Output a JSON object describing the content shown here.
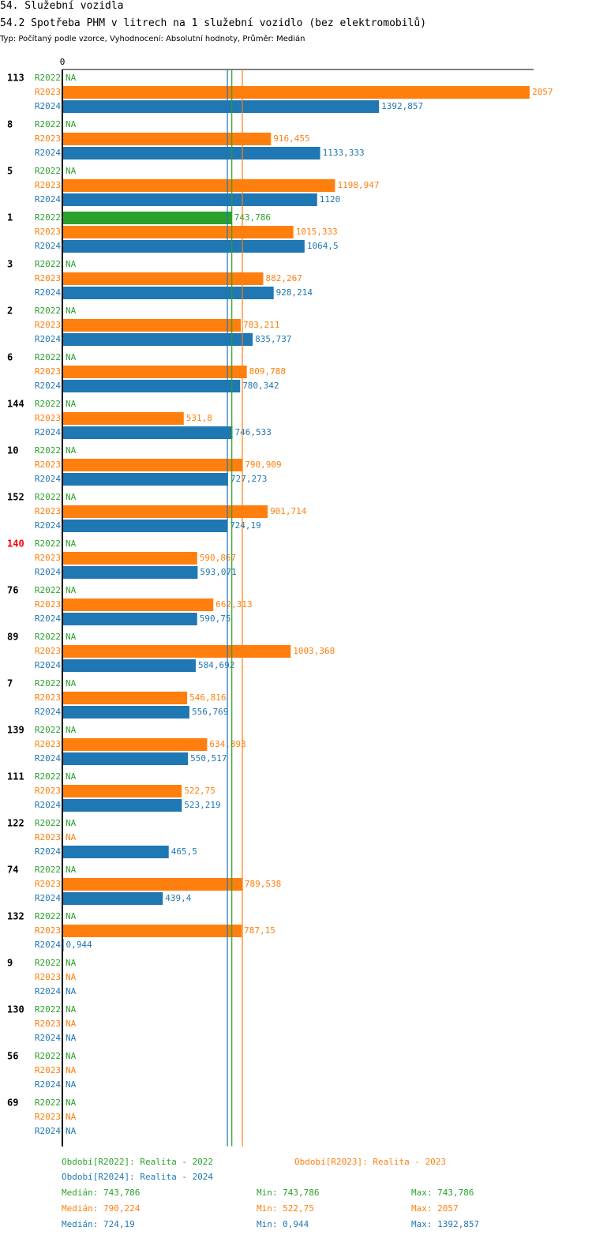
{
  "header": {
    "section": "54. Služební vozidla",
    "title": "54.2 Spotřeba PHM v litrech na 1 služební vozidlo (bez elektromobilů)",
    "subtitle": "Typ: Počítaný podle vzorce, Vyhodnocení: Absolutní hodnoty, Průměr: Medián"
  },
  "colors": {
    "R2022": "#2ca02c",
    "R2023": "#ff7f0e",
    "R2024": "#1f77b4",
    "highlight": "#ff0000"
  },
  "chart_data": {
    "type": "bar",
    "orientation": "horizontal",
    "axis_zero_label": "0",
    "xlim": [
      0,
      2100
    ],
    "na_label": "NA",
    "series_names": [
      "R2022",
      "R2023",
      "R2024"
    ],
    "categories": [
      {
        "label": "113",
        "highlight": false,
        "values": [
          null,
          2057,
          1392.857
        ],
        "labels": [
          "NA",
          "2057",
          "1392,857"
        ]
      },
      {
        "label": "8",
        "highlight": false,
        "values": [
          null,
          916.455,
          1133.333
        ],
        "labels": [
          "NA",
          "916,455",
          "1133,333"
        ]
      },
      {
        "label": "5",
        "highlight": false,
        "values": [
          null,
          1198.947,
          1120
        ],
        "labels": [
          "NA",
          "1198,947",
          "1120"
        ]
      },
      {
        "label": "1",
        "highlight": false,
        "values": [
          743.786,
          1015.333,
          1064.5
        ],
        "labels": [
          "743,786",
          "1015,333",
          "1064,5"
        ]
      },
      {
        "label": "3",
        "highlight": false,
        "values": [
          null,
          882.267,
          928.214
        ],
        "labels": [
          "NA",
          "882,267",
          "928,214"
        ]
      },
      {
        "label": "2",
        "highlight": false,
        "values": [
          null,
          783.211,
          835.737
        ],
        "labels": [
          "NA",
          "783,211",
          "835,737"
        ]
      },
      {
        "label": "6",
        "highlight": false,
        "values": [
          null,
          809.788,
          780.342
        ],
        "labels": [
          "NA",
          "809,788",
          "780,342"
        ]
      },
      {
        "label": "144",
        "highlight": false,
        "values": [
          null,
          531.8,
          746.533
        ],
        "labels": [
          "NA",
          "531,8",
          "746,533"
        ]
      },
      {
        "label": "10",
        "highlight": false,
        "values": [
          null,
          790.909,
          727.273
        ],
        "labels": [
          "NA",
          "790,909",
          "727,273"
        ]
      },
      {
        "label": "152",
        "highlight": false,
        "values": [
          null,
          901.714,
          724.19
        ],
        "labels": [
          "NA",
          "901,714",
          "724,19"
        ]
      },
      {
        "label": "140",
        "highlight": true,
        "values": [
          null,
          590.867,
          593.071
        ],
        "labels": [
          "NA",
          "590,867",
          "593,071"
        ]
      },
      {
        "label": "76",
        "highlight": false,
        "values": [
          null,
          662.313,
          590.75
        ],
        "labels": [
          "NA",
          "662,313",
          "590,75"
        ]
      },
      {
        "label": "89",
        "highlight": false,
        "values": [
          null,
          1003.368,
          584.692
        ],
        "labels": [
          "NA",
          "1003,368",
          "584,692"
        ]
      },
      {
        "label": "7",
        "highlight": false,
        "values": [
          null,
          546.816,
          556.769
        ],
        "labels": [
          "NA",
          "546,816",
          "556,769"
        ]
      },
      {
        "label": "139",
        "highlight": false,
        "values": [
          null,
          634.893,
          550.517
        ],
        "labels": [
          "NA",
          "634,893",
          "550,517"
        ]
      },
      {
        "label": "111",
        "highlight": false,
        "values": [
          null,
          522.75,
          523.219
        ],
        "labels": [
          "NA",
          "522,75",
          "523,219"
        ]
      },
      {
        "label": "122",
        "highlight": false,
        "values": [
          null,
          null,
          465.5
        ],
        "labels": [
          "NA",
          "NA",
          "465,5"
        ]
      },
      {
        "label": "74",
        "highlight": false,
        "values": [
          null,
          789.538,
          439.4
        ],
        "labels": [
          "NA",
          "789,538",
          "439,4"
        ]
      },
      {
        "label": "132",
        "highlight": false,
        "values": [
          null,
          787.15,
          0.944
        ],
        "labels": [
          "NA",
          "787,15",
          "0,944"
        ]
      },
      {
        "label": "9",
        "highlight": false,
        "values": [
          null,
          null,
          null
        ],
        "labels": [
          "NA",
          "NA",
          "NA"
        ]
      },
      {
        "label": "130",
        "highlight": false,
        "values": [
          null,
          null,
          null
        ],
        "labels": [
          "NA",
          "NA",
          "NA"
        ]
      },
      {
        "label": "56",
        "highlight": false,
        "values": [
          null,
          null,
          null
        ],
        "labels": [
          "NA",
          "NA",
          "NA"
        ]
      },
      {
        "label": "69",
        "highlight": false,
        "values": [
          null,
          null,
          null
        ],
        "labels": [
          "NA",
          "NA",
          "NA"
        ]
      }
    ],
    "median_lines": [
      {
        "series": "R2022",
        "value": 743.786
      },
      {
        "series": "R2023",
        "value": 790.224
      },
      {
        "series": "R2024",
        "value": 724.19
      }
    ]
  },
  "legend": {
    "r2022": "Období[R2022]: Realita - 2022",
    "r2023": "Období[R2023]: Realita - 2023",
    "r2024": "Období[R2024]: Realita - 2024"
  },
  "stats": [
    {
      "median": "Medián: 743,786",
      "min": "Min: 743,786",
      "max": "Max: 743,786"
    },
    {
      "median": "Medián: 790,224",
      "min": "Min: 522,75",
      "max": "Max: 2057"
    },
    {
      "median": "Medián: 724,19",
      "min": "Min: 0,944",
      "max": "Max: 1392,857"
    }
  ]
}
